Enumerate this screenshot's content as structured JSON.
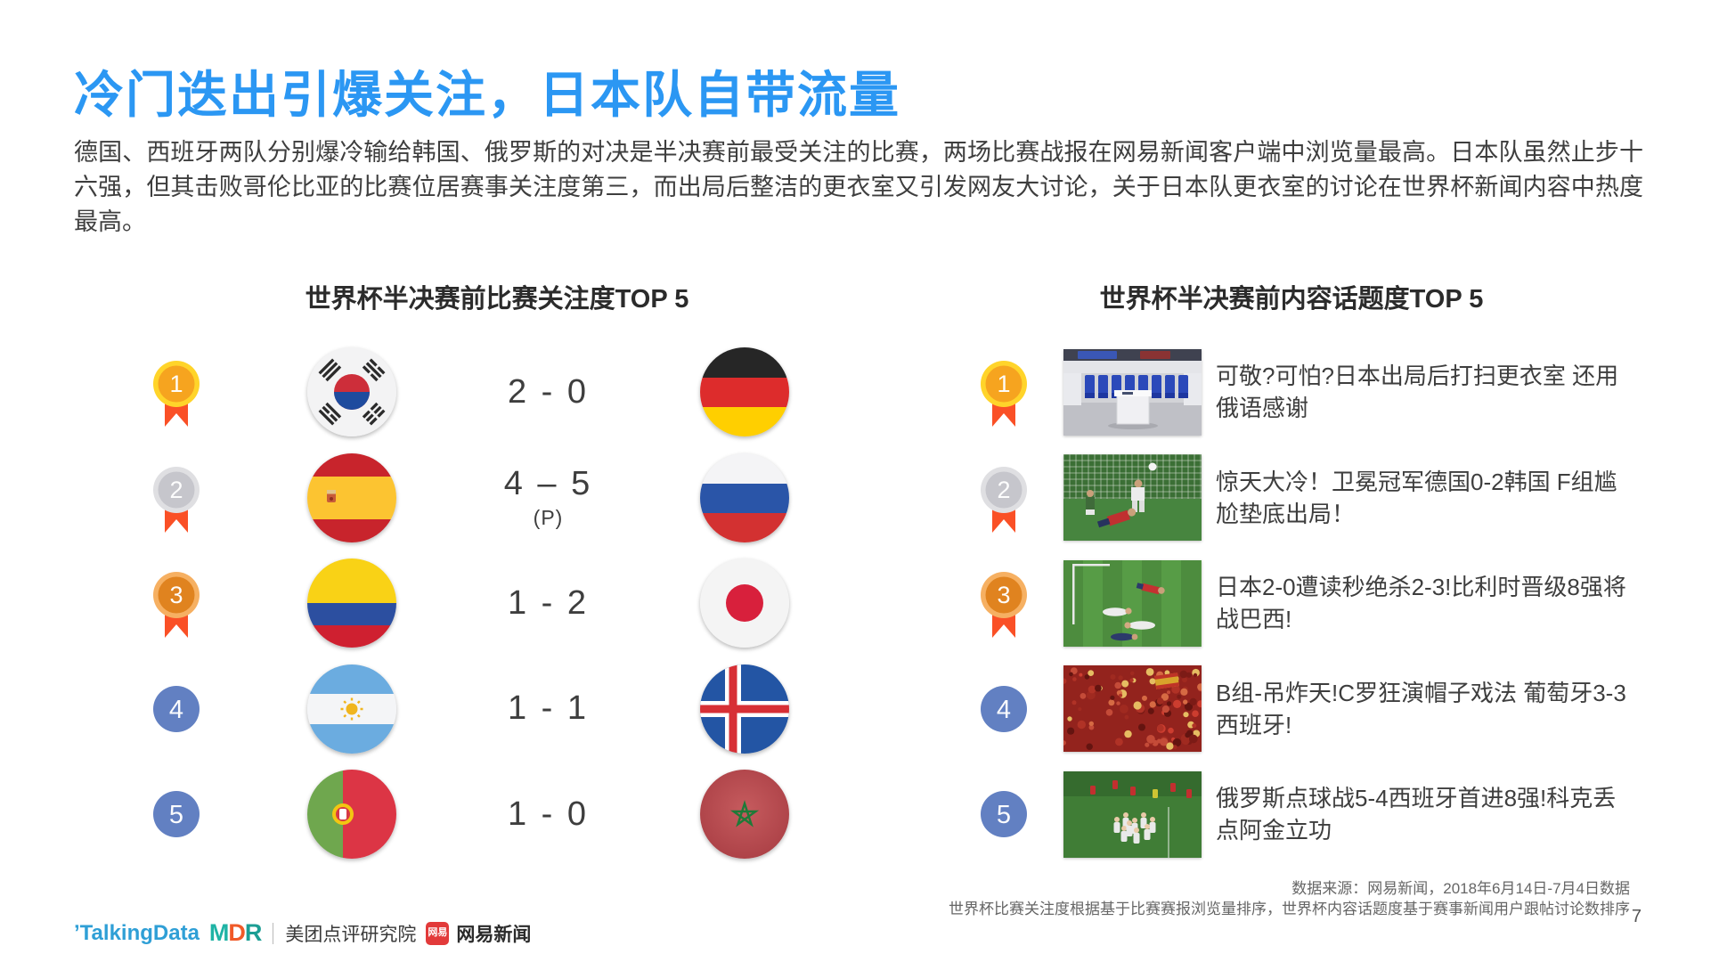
{
  "page": {
    "title": "冷门迭出引爆关注，日本队自带流量",
    "paragraph": "德国、西班牙两队分别爆冷输给韩国、俄罗斯的对决是半决赛前最受关注的比赛，两场比赛战报在网易新闻客户端中浏览量最高。日本队虽然止步十六强，但其击败哥伦比亚的比赛位居赛事关注度第三，而出局后整洁的更衣室又引发网友大讨论，关于日本队更衣室的讨论在世界杯新闻内容中热度最高。",
    "page_number": "7"
  },
  "colors": {
    "accent_blue": "#2b97f3",
    "medal_gold_ring": "#ffd42a",
    "medal_gold_core": "#f6a41f",
    "medal_silver_ring": "#dfdfe2",
    "medal_silver_core": "#c6c6cc",
    "medal_bronze_ring": "#f6b062",
    "medal_bronze_core": "#e0831f",
    "ribbon_red": "#fa5026",
    "rank_blue": "#6280c2"
  },
  "left_panel": {
    "title": "世界杯半决赛前比赛关注度TOP 5",
    "rows": [
      {
        "rank": "1",
        "medal": "gold",
        "home_flag": "south-korea",
        "score": "2 - 0",
        "score_note": "",
        "away_flag": "germany"
      },
      {
        "rank": "2",
        "medal": "silver",
        "home_flag": "spain",
        "score": "4 – 5",
        "score_note": "(P)",
        "away_flag": "russia"
      },
      {
        "rank": "3",
        "medal": "bronze",
        "home_flag": "colombia",
        "score": "1 - 2",
        "score_note": "",
        "away_flag": "japan"
      },
      {
        "rank": "4",
        "medal": "blue",
        "home_flag": "argentina",
        "score": "1 - 1",
        "score_note": "",
        "away_flag": "iceland"
      },
      {
        "rank": "5",
        "medal": "blue",
        "home_flag": "portugal",
        "score": "1 - 0",
        "score_note": "",
        "away_flag": "morocco"
      }
    ]
  },
  "right_panel": {
    "title": "世界杯半决赛前内容话题度TOP 5",
    "rows": [
      {
        "rank": "1",
        "medal": "gold",
        "photo": "locker-room",
        "headline": "可敬?可怕?日本出局后打扫更衣室 还用俄语感谢"
      },
      {
        "rank": "2",
        "medal": "silver",
        "photo": "germany-korea-goal",
        "headline": "惊天大冷！卫冕冠军德国0-2韩国 F组尴尬垫底出局！"
      },
      {
        "rank": "3",
        "medal": "bronze",
        "photo": "japan-belgium",
        "headline": "日本2-0遭读秒绝杀2-3!比利时晋级8强将战巴西!"
      },
      {
        "rank": "4",
        "medal": "blue",
        "photo": "portugal-spain-fans",
        "headline": "B组-吊炸天!C罗狂演帽子戏法 葡萄牙3-3西班牙!"
      },
      {
        "rank": "5",
        "medal": "blue",
        "photo": "russia-penalties",
        "headline": "俄罗斯点球战5-4西班牙首进8强!科克丢点阿金立功"
      }
    ]
  },
  "footer": {
    "source_line1": "数据来源：网易新闻，2018年6月14日-7月4日数据",
    "source_line2": "世界杯比赛关注度根据基于比赛赛报浏览量排序，世界杯内容话题度基于赛事新闻用户跟帖讨论数排序",
    "logos": {
      "talkingdata": "ʼTalkingData",
      "mdr": [
        "M",
        "D",
        "R"
      ],
      "meituan": "美团点评研究院",
      "netease_badge": "网易",
      "netease": "网易新闻"
    }
  }
}
